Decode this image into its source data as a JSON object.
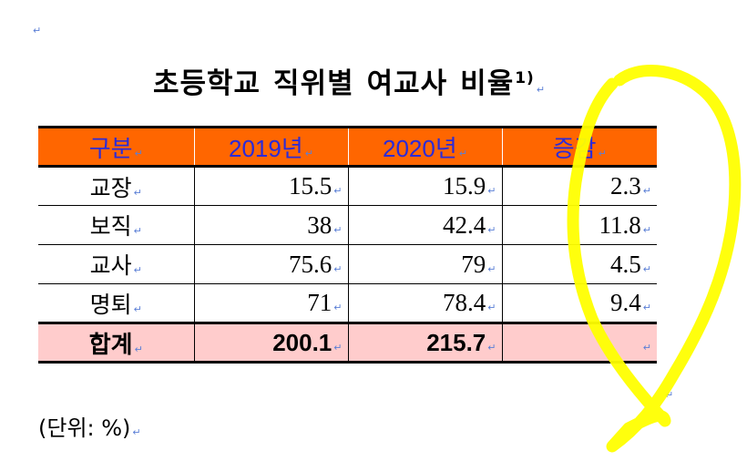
{
  "title": {
    "words": [
      "초등학교",
      "직위별",
      "여교사",
      "비율"
    ],
    "footnote_mark": "1)"
  },
  "table": {
    "headers": [
      "구분",
      "2019년",
      "2020년",
      "증감"
    ],
    "rows": [
      {
        "label": "교장",
        "y2019": "15.5",
        "y2020": "15.9",
        "change": "2.3"
      },
      {
        "label": "보직",
        "y2019": "38",
        "y2020": "42.4",
        "change": "11.8"
      },
      {
        "label": "교사",
        "y2019": "75.6",
        "y2020": "79",
        "change": "4.5"
      },
      {
        "label": "명퇴",
        "y2019": "71",
        "y2020": "78.4",
        "change": "9.4"
      }
    ],
    "total": {
      "label": "합계",
      "y2019": "200.1",
      "y2020": "215.7",
      "change": ""
    }
  },
  "unit_note": "(단위: %)",
  "paragraph_mark": "↵",
  "colors": {
    "header_bg": "#ff6600",
    "header_text": "#2b2bd9",
    "total_row_bg": "#ffcccc",
    "annotation_stroke": "#ffff00",
    "paragraph_mark": "#5b7fd6"
  }
}
